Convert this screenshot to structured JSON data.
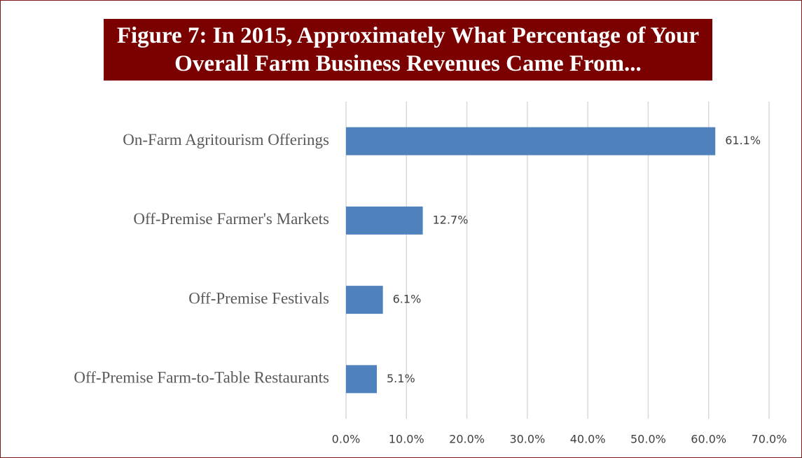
{
  "chart_data": {
    "type": "bar",
    "orientation": "horizontal",
    "title": "Figure 7: In 2015, Approximately What Percentage of Your Overall Farm Business Revenues Came From...",
    "categories": [
      "On-Farm Agritourism Offerings",
      "Off-Premise Farmer's Markets",
      "Off-Premise Festivals",
      "Off-Premise Farm-to-Table Restaurants"
    ],
    "values": [
      61.1,
      12.7,
      6.1,
      5.1
    ],
    "value_labels": [
      "61.1%",
      "12.7%",
      "6.1%",
      "5.1%"
    ],
    "color": "#4f81bd",
    "xlim": [
      0,
      70
    ],
    "xticks": [
      {
        "value": 0,
        "label": "0.0%"
      },
      {
        "value": 10,
        "label": "10.0%"
      },
      {
        "value": 20,
        "label": "20.0%"
      },
      {
        "value": 30,
        "label": "30.0%"
      },
      {
        "value": 40,
        "label": "40.0%"
      },
      {
        "value": 50,
        "label": "50.0%"
      },
      {
        "value": 60,
        "label": "60.0%"
      },
      {
        "value": 70,
        "label": "70.0%"
      }
    ],
    "grid": true
  }
}
